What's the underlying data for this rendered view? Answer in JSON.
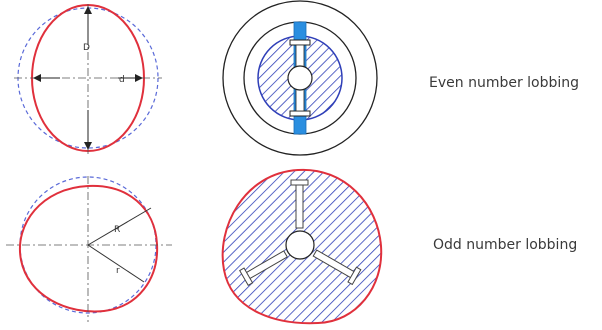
{
  "captions": {
    "even": "Even number lobbing",
    "odd": "Odd number lobbing"
  },
  "labels": {
    "diameter_major": "D",
    "diameter_minor": "d",
    "radius_major": "R",
    "radius_minor": "r"
  },
  "colors": {
    "profile": "#e0303c",
    "reference_circle": "#5a6ad8",
    "hatch": "#2f3fb8",
    "split_bar": "#2a8ee0",
    "ring": "#222222",
    "dimension": "#333333"
  }
}
